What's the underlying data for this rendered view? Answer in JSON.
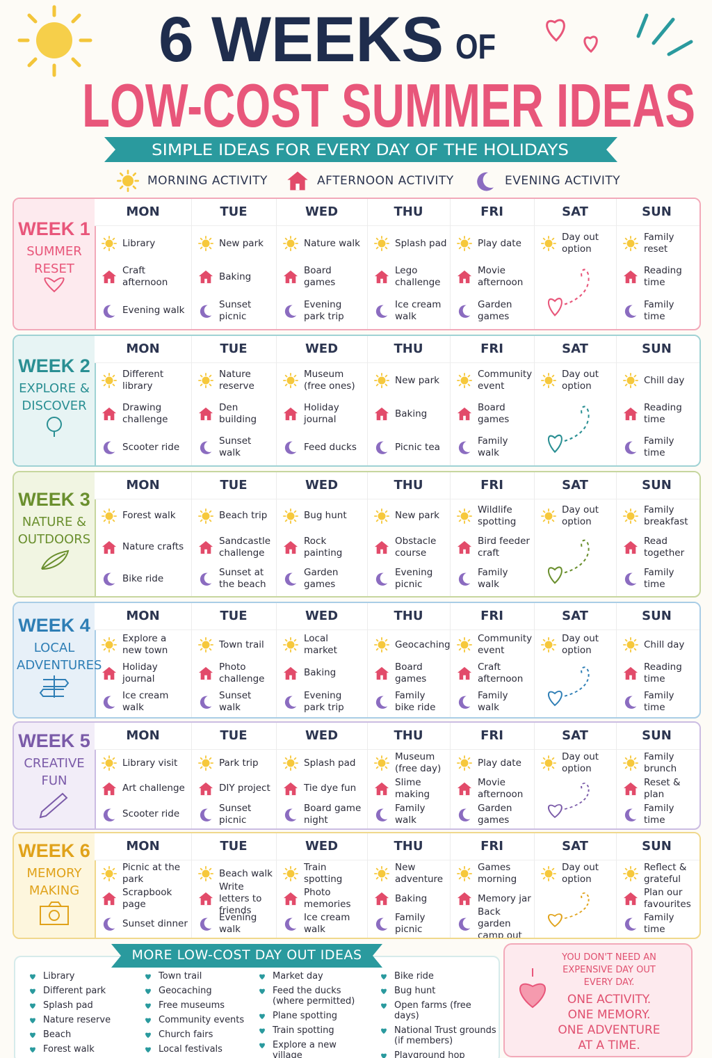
{
  "header": {
    "title_number": "6 WEEKS",
    "title_of": "OF",
    "title_main": "LOW-COST SUMMER IDEAS",
    "subtitle": "SIMPLE IDEAS FOR EVERY DAY OF THE HOLIDAYS"
  },
  "legend": [
    "MORNING ACTIVITY",
    "AFTERNOON ACTIVITY",
    "EVENING ACTIVITY"
  ],
  "days": [
    "MON",
    "TUE",
    "WED",
    "THU",
    "FRI",
    "SAT",
    "SUN"
  ],
  "weeks": [
    {
      "label": "WEEK 1",
      "theme": "SUMMER RESET",
      "cells": [
        [
          "Library",
          "Craft afternoon",
          "Evening walk"
        ],
        [
          "New park",
          "Baking",
          "Sunset picnic"
        ],
        [
          "Nature walk",
          "Board games",
          "Evening park trip"
        ],
        [
          "Splash pad",
          "Lego challenge",
          "Ice cream walk"
        ],
        [
          "Play date",
          "Movie afternoon",
          "Garden games"
        ],
        [
          "Day out option"
        ],
        [
          "Family reset",
          "Reading time",
          "Family time"
        ]
      ]
    },
    {
      "label": "WEEK 2",
      "theme": "EXPLORE & DISCOVER",
      "cells": [
        [
          "Different library",
          "Drawing challenge",
          "Scooter ride"
        ],
        [
          "Nature reserve",
          "Den building",
          "Sunset walk"
        ],
        [
          "Museum (free ones)",
          "Holiday journal",
          "Feed ducks"
        ],
        [
          "New park",
          "Baking",
          "Picnic tea"
        ],
        [
          "Community event",
          "Board games",
          "Family walk"
        ],
        [
          "Day out option"
        ],
        [
          "Chill day",
          "Reading time",
          "Family time"
        ]
      ]
    },
    {
      "label": "WEEK 3",
      "theme": "NATURE & OUTDOORS",
      "cells": [
        [
          "Forest walk",
          "Nature crafts",
          "Bike ride"
        ],
        [
          "Beach trip",
          "Sandcastle challenge",
          "Sunset at the beach"
        ],
        [
          "Bug hunt",
          "Rock painting",
          "Garden games"
        ],
        [
          "New park",
          "Obstacle course",
          "Evening picnic"
        ],
        [
          "Wildlife spotting",
          "Bird feeder craft",
          "Family walk"
        ],
        [
          "Day out option"
        ],
        [
          "Family breakfast",
          "Read together",
          "Family time"
        ]
      ]
    },
    {
      "label": "WEEK 4",
      "theme": "LOCAL ADVENTURES",
      "cells": [
        [
          "Explore a new town",
          "Holiday journal",
          "Ice cream walk"
        ],
        [
          "Town trail",
          "Photo challenge",
          "Sunset walk"
        ],
        [
          "Local market",
          "Baking",
          "Evening park trip"
        ],
        [
          "Geocaching",
          "Board games",
          "Family bike ride"
        ],
        [
          "Community event",
          "Craft afternoon",
          "Family walk"
        ],
        [
          "Day out option"
        ],
        [
          "Chill day",
          "Reading time",
          "Family time"
        ]
      ]
    },
    {
      "label": "WEEK 5",
      "theme": "CREATIVE FUN",
      "cells": [
        [
          "Library visit",
          "Art challenge",
          "Scooter ride"
        ],
        [
          "Park trip",
          "DIY project",
          "Sunset picnic"
        ],
        [
          "Splash pad",
          "Tie dye fun",
          "Board game night"
        ],
        [
          "Museum (free day)",
          "Slime making",
          "Family walk"
        ],
        [
          "Play date",
          "Movie afternoon",
          "Garden games"
        ],
        [
          "Day out option"
        ],
        [
          "Family brunch",
          "Reset & plan",
          "Family time"
        ]
      ]
    },
    {
      "label": "WEEK 6",
      "theme": "MEMORY MAKING",
      "cells": [
        [
          "Picnic at the park",
          "Scrapbook page",
          "Sunset dinner"
        ],
        [
          "Beach walk",
          "Write letters to friends",
          "Evening walk"
        ],
        [
          "Train spotting",
          "Photo memories",
          "Ice cream walk"
        ],
        [
          "New adventure",
          "Baking",
          "Family picnic"
        ],
        [
          "Games morning",
          "Memory jar",
          "Back garden camp out"
        ],
        [
          "Day out option"
        ],
        [
          "Reflect & grateful",
          "Plan our favourites",
          "Family time"
        ]
      ]
    }
  ],
  "more_ideas": {
    "title": "MORE LOW-COST DAY OUT IDEAS",
    "columns": [
      [
        "Library",
        "Different park",
        "Splash pad",
        "Nature reserve",
        "Beach",
        "Forest walk"
      ],
      [
        "Town trail",
        "Geocaching",
        "Free museums",
        "Community events",
        "Church fairs",
        "Local festivals"
      ],
      [
        "Market day",
        "Feed the ducks (where permitted)",
        "Plane spotting",
        "Train spotting",
        "Explore a new village"
      ],
      [
        "Bike ride",
        "Bug hunt",
        "Open farms (free days)",
        "National Trust grounds (if members)",
        "Playground hop"
      ]
    ]
  },
  "note": {
    "intro": "YOU DON'T NEED AN EXPENSIVE DAY OUT EVERY DAY.",
    "message": "ONE ACTIVITY. ONE MEMORY. ONE ADVENTURE AT A TIME."
  }
}
